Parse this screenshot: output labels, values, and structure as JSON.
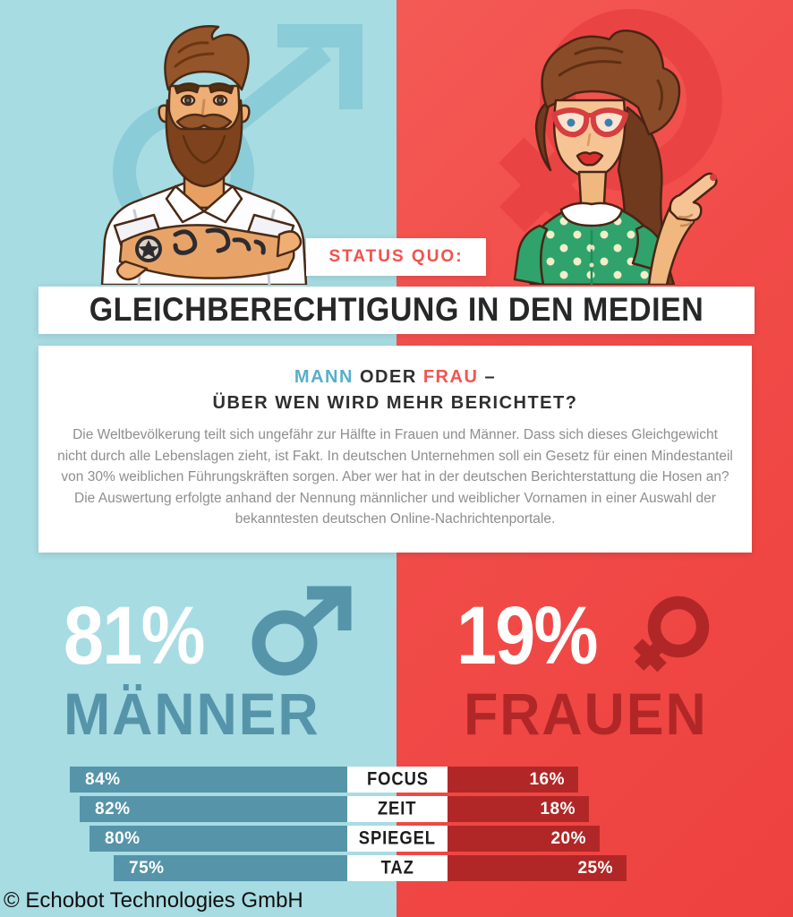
{
  "page": {
    "copyright": "© Echobot Technologies GmbH"
  },
  "header": {
    "badge": "STATUS QUO:",
    "title": "GLEICHBERECHTIGUNG IN DEN MEDIEN"
  },
  "intro": {
    "word_mann": "MANN",
    "word_oder": "ODER",
    "word_frau": "FRAU",
    "word_dash": "–",
    "line2": "ÜBER WEN WIRD MEHR BERICHTET?",
    "body": "Die Weltbevölkerung teilt sich ungefähr zur Hälfte in Frauen und Männer. Dass sich dieses Gleichgewicht nicht durch alle Lebenslagen zieht, ist Fakt. In deutschen Unternehmen soll ein Gesetz für einen Mindestanteil von 30% weiblichen Führungskräften sorgen. Aber wer hat in der deutschen Berichterstattung die Hosen an? Die Auswertung erfolgte anhand der Nennung männlicher und weiblicher Vornamen in einer Auswahl der bekanntesten deutschen Online-Nachrichtenportale."
  },
  "stats": {
    "male": {
      "value": "81%",
      "label": "MÄNNER",
      "icon": "male-symbol"
    },
    "female": {
      "value": "19%",
      "label": "FRAUEN",
      "icon": "female-symbol"
    }
  },
  "chart_data": {
    "type": "bar",
    "orientation": "horizontal-diverging",
    "categories": [
      "FOCUS",
      "ZEIT",
      "SPIEGEL",
      "TAZ"
    ],
    "series": [
      {
        "name": "Männer",
        "color": "#5694aa",
        "values": [
          84,
          82,
          80,
          75
        ]
      },
      {
        "name": "Frauen",
        "color": "#b12727",
        "values": [
          16,
          18,
          20,
          25
        ]
      }
    ],
    "unit": "%",
    "value_labels": true,
    "legend_position": "none",
    "grid": false
  },
  "colors": {
    "bg_left": "#a7dce3",
    "bg_right": "#f14b48",
    "male_accent": "#5694aa",
    "female_accent": "#b12727",
    "headline_mann": "#57aecd",
    "headline_frau": "#f4544e",
    "badge_text": "#f4504c",
    "title_text": "#272727",
    "body_text": "#8e8e8e",
    "watermark_left": "#8accd7",
    "watermark_right": "#ea4343"
  }
}
